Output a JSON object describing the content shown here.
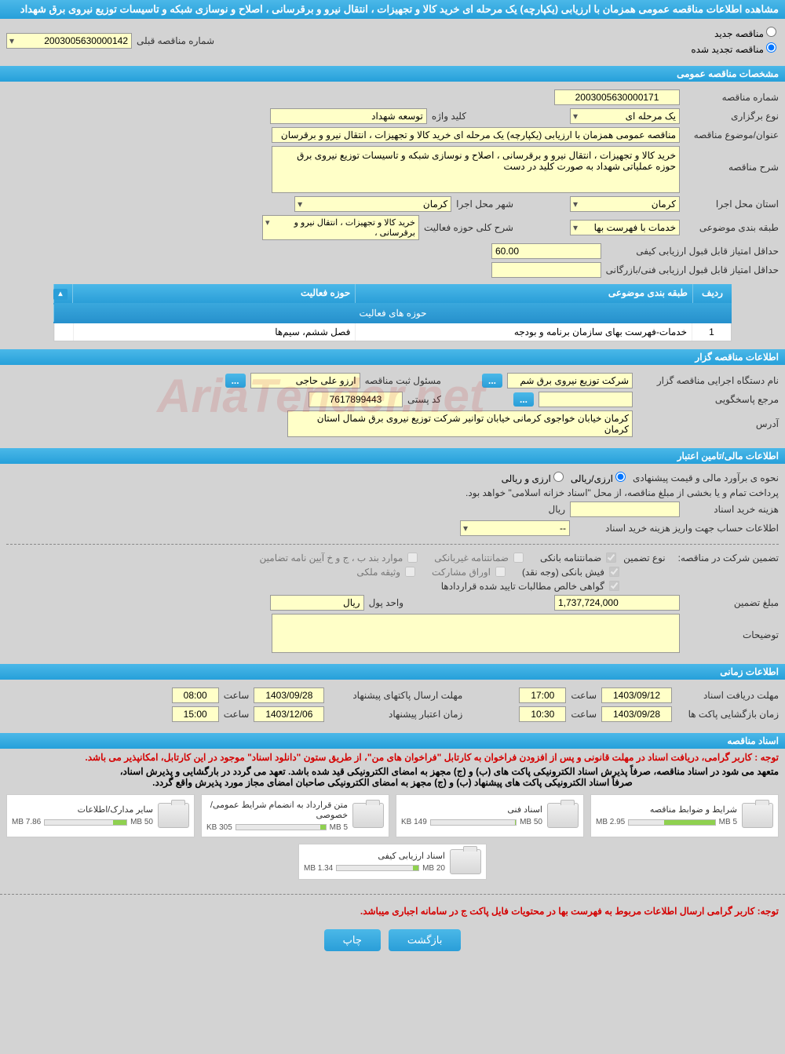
{
  "page_title": "مشاهده اطلاعات مناقصه عمومی همزمان با ارزیابی (یکپارچه) یک مرحله ای خرید کالا و تجهیزات ، انتقال نیرو و برقرسانی ، اصلاح و نوسازی شبکه و تاسیسات توزیع نیروی برق شهداد",
  "tender_type": {
    "new_label": "مناقصه جدید",
    "renewed_label": "مناقصه تجدید شده",
    "prev_num_label": "شماره مناقصه قبلی",
    "prev_num": "2003005630000142"
  },
  "sections": {
    "general": "مشخصات مناقصه عمومی",
    "holder": "اطلاعات مناقصه گزار",
    "financial": "اطلاعات مالی/تامین اعتبار",
    "timing": "اطلاعات زمانی",
    "documents": "اسناد مناقصه"
  },
  "general": {
    "tender_num_label": "شماره مناقصه",
    "tender_num": "2003005630000171",
    "holding_type_label": "نوع برگزاری",
    "holding_type": "یک مرحله ای",
    "keyword_label": "کلید واژه",
    "keyword": "توسعه شهداد",
    "subject_label": "عنوان/موضوع مناقصه",
    "subject": "مناقصه عمومی همزمان با ارزیابی (یکپارچه) یک مرحله ای خرید کالا و تجهیزات ، انتقال نیرو و برقرسان",
    "description_label": "شرح مناقصه",
    "description": "خرید کالا و تجهیزات ، انتقال نیرو و برقرسانی ، اصلاح و نوسازی شبکه و تاسیسات توزیع نیروی برق حوزه عملیاتی شهداد به صورت کلید در دست",
    "province_label": "استان محل اجرا",
    "province": "کرمان",
    "city_label": "شهر محل اجرا",
    "city": "کرمان",
    "category_label": "طبقه بندی موضوعی",
    "category": "خدمات با فهرست بها",
    "activity_desc_label": "شرح کلی حوزه فعالیت",
    "activity_desc": "خرید کالا و تجهیزات ، انتقال نیرو و برقرسانی ،",
    "min_quality_score_label": "حداقل امتیاز قابل قبول ارزیابی کیفی",
    "min_quality_score": "60.00",
    "min_tech_score_label": "حداقل امتیاز قابل قبول ارزیابی فنی/بازرگانی",
    "min_tech_score": ""
  },
  "activity_table": {
    "title": "حوزه های فعالیت",
    "col_row": "ردیف",
    "col_category": "طبقه بندی موضوعی",
    "col_field": "حوزه فعالیت",
    "rows": [
      {
        "n": "1",
        "category": "خدمات-فهرست بهای سازمان برنامه و بودجه",
        "field": "فصل ششم، سیم‌ها"
      }
    ]
  },
  "holder": {
    "exec_label": "نام دستگاه اجرایی مناقصه گزار",
    "exec": "شرکت توزیع نیروی برق شم",
    "registrar_label": "مسئول ثبت مناقصه",
    "registrar": "ارزو علی حاجی",
    "response_unit_label": "مرجع پاسخگویی",
    "response_unit": "",
    "postal_label": "کد پستی",
    "postal": "7617899443",
    "address_label": "آدرس",
    "address": "کرمان خیابان خواجوی کرمانی خیابان توانیر شرکت توزیع نیروی برق شمال استان کرمان"
  },
  "financial": {
    "estimate_method_label": "نحوه ی برآورد مالی و قیمت پیشنهادی",
    "opt_rial": "ارزی/ریالی",
    "opt_currency": "ارزی و ریالی",
    "payment_note": "پرداخت تمام و یا بخشی از مبلغ مناقصه، از محل \"اسناد خزانه اسلامی\" خواهد بود.",
    "doc_fee_label": "هزینه خرید اسناد",
    "doc_fee": "",
    "doc_fee_unit": "ریال",
    "account_label": "اطلاعات حساب جهت واریز هزینه خرید اسناد",
    "account": "--",
    "guarantee_label": "تضمین شرکت در مناقصه:",
    "guarantee_type_label": "نوع تضمین",
    "g_bank": "ضمانتنامه بانکی",
    "g_nonbank": "ضمانتنامه غیربانکی",
    "g_bond": "موارد بند ب ، ج و خ آیین نامه تضامین",
    "g_cash": "فیش بانکی (وجه نقد)",
    "g_shares": "اوراق مشارکت",
    "g_property": "وثیقه ملکی",
    "g_receivables": "گواهی خالص مطالبات تایید شده قراردادها",
    "amount_label": "مبلغ تضمین",
    "amount": "1,737,724,000",
    "unit_label": "واحد پول",
    "unit": "ریال",
    "notes_label": "توضیحات",
    "notes": ""
  },
  "timing": {
    "doc_deadline_label": "مهلت دریافت اسناد",
    "doc_deadline_date": "1403/09/12",
    "doc_deadline_time": "17:00",
    "proposal_deadline_label": "مهلت ارسال پاکتهای پیشنهاد",
    "proposal_deadline_date": "1403/09/28",
    "proposal_deadline_time": "08:00",
    "opening_label": "زمان بازگشایی پاکت ها",
    "opening_date": "1403/09/28",
    "opening_time": "10:30",
    "validity_label": "زمان اعتبار پیشنهاد",
    "validity_date": "1403/12/06",
    "validity_time": "15:00",
    "time_word": "ساعت"
  },
  "docs": {
    "note1": "توجه : کاربر گرامی، دریافت اسناد در مهلت قانونی و پس از افزودن فراخوان به کارتابل \"فراخوان های من\"، از طریق ستون \"دانلود اسناد\" موجود در این کارتابل، امکانپذیر می باشد.",
    "note2a": "متعهد می شود در اسناد مناقصه، صرفاً پذیرش اسناد الکترونیکی پاکت های (ب) و (ج) مجهز به امضای الکترونیکی قید شده باشد. تعهد می گردد در بارگشایی و پذیرش اسناد،",
    "note2b": "صرفاً اسناد الکترونیکی پاکت های پیشنهاد (ب) و (ج) مجهز به امضای الکترونیکی صاحبان امضای مجاز مورد پذیرش واقع گردد.",
    "files": [
      {
        "title": "شرایط و ضوابط مناقصه",
        "size": "2.95 MB",
        "cap": "5 MB",
        "pct": 59
      },
      {
        "title": "اسناد فنی",
        "size": "149 KB",
        "cap": "50 MB",
        "pct": 1
      },
      {
        "title": "متن قرارداد به انضمام شرایط عمومی/خصوصی",
        "size": "305 KB",
        "cap": "5 MB",
        "pct": 6
      },
      {
        "title": "سایر مدارک/اطلاعات",
        "size": "7.86 MB",
        "cap": "50 MB",
        "pct": 16
      },
      {
        "title": "اسناد ارزیابی کیفی",
        "size": "1.34 MB",
        "cap": "20 MB",
        "pct": 7
      }
    ],
    "footer_note": "توجه: کاربر گرامی ارسال اطلاعات مربوط به فهرست بها در محتویات فایل پاکت ج در سامانه اجباری میباشد."
  },
  "buttons": {
    "back": "بازگشت",
    "print": "چاپ"
  },
  "colors": {
    "header_bg": "#26a0da",
    "field_bg": "#ffffc8",
    "page_bg": "#d3d3d3",
    "warn": "#d40000",
    "bar_fill": "#8fd14f"
  },
  "watermark": "AriaTender.net"
}
